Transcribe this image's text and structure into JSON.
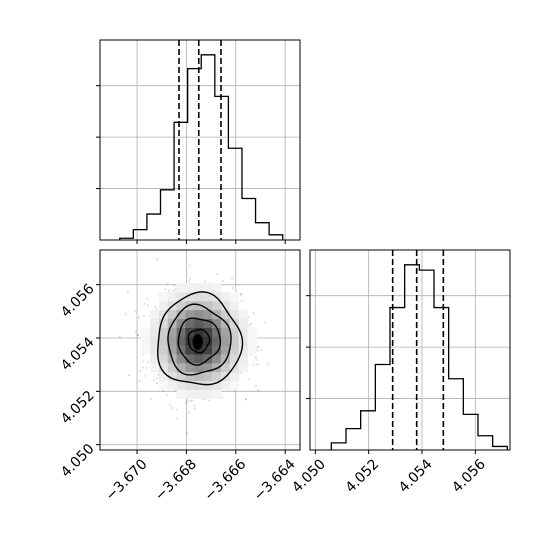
{
  "chart_data": [
    {
      "panel": "histogram-top",
      "type": "bar",
      "variable_index": 0,
      "xlim": [
        -3.6715,
        -3.6634
      ],
      "bin_edges": [
        -3.6707,
        -3.67015,
        -3.6696,
        -3.66905,
        -3.6685,
        -3.66795,
        -3.6674,
        -3.66685,
        -3.6663,
        -3.66575,
        -3.6652,
        -3.66465,
        -3.6641
      ],
      "counts": [
        1,
        6,
        15,
        29,
        68,
        99,
        107,
        83,
        53,
        24,
        10,
        3
      ],
      "quantile_lines": [
        -3.6683,
        -3.6675,
        -3.6666
      ],
      "x_ticks": [
        -3.67,
        -3.668,
        -3.666,
        -3.664
      ],
      "grid": true
    },
    {
      "panel": "scatter-2d",
      "type": "scatter",
      "xlim": [
        -3.6715,
        -3.6634
      ],
      "ylim": [
        4.0498,
        4.0573
      ],
      "center": [
        -3.6675,
        4.0539
      ],
      "spread": [
        0.00085,
        0.00086
      ],
      "contour_levels_sigma": [
        0.5,
        1.0,
        1.5,
        2.0
      ],
      "x_ticks": [
        -3.67,
        -3.668,
        -3.666,
        -3.664
      ],
      "x_tick_labels": [
        "−3.670",
        "−3.668",
        "−3.666",
        "−3.664"
      ],
      "y_ticks": [
        4.05,
        4.052,
        4.054,
        4.056
      ],
      "y_tick_labels": [
        "4.050",
        "4.052",
        "4.054",
        "4.056"
      ],
      "grid": true
    },
    {
      "panel": "histogram-right",
      "type": "bar",
      "variable_index": 1,
      "xlim": [
        4.0498,
        4.0573
      ],
      "bin_edges": [
        4.0506,
        4.05115,
        4.0517,
        4.05225,
        4.0528,
        4.05335,
        4.0539,
        4.05445,
        4.055,
        4.05555,
        4.0561,
        4.05665,
        4.0572
      ],
      "counts": [
        4,
        12,
        22,
        48,
        80,
        104,
        101,
        80,
        40,
        20,
        8,
        2
      ],
      "quantile_lines": [
        4.0529,
        4.0538,
        4.0548
      ],
      "x_ticks": [
        4.05,
        4.052,
        4.054,
        4.056
      ],
      "x_tick_labels": [
        "4.050",
        "4.052",
        "4.054",
        "4.056"
      ],
      "grid": true
    }
  ]
}
